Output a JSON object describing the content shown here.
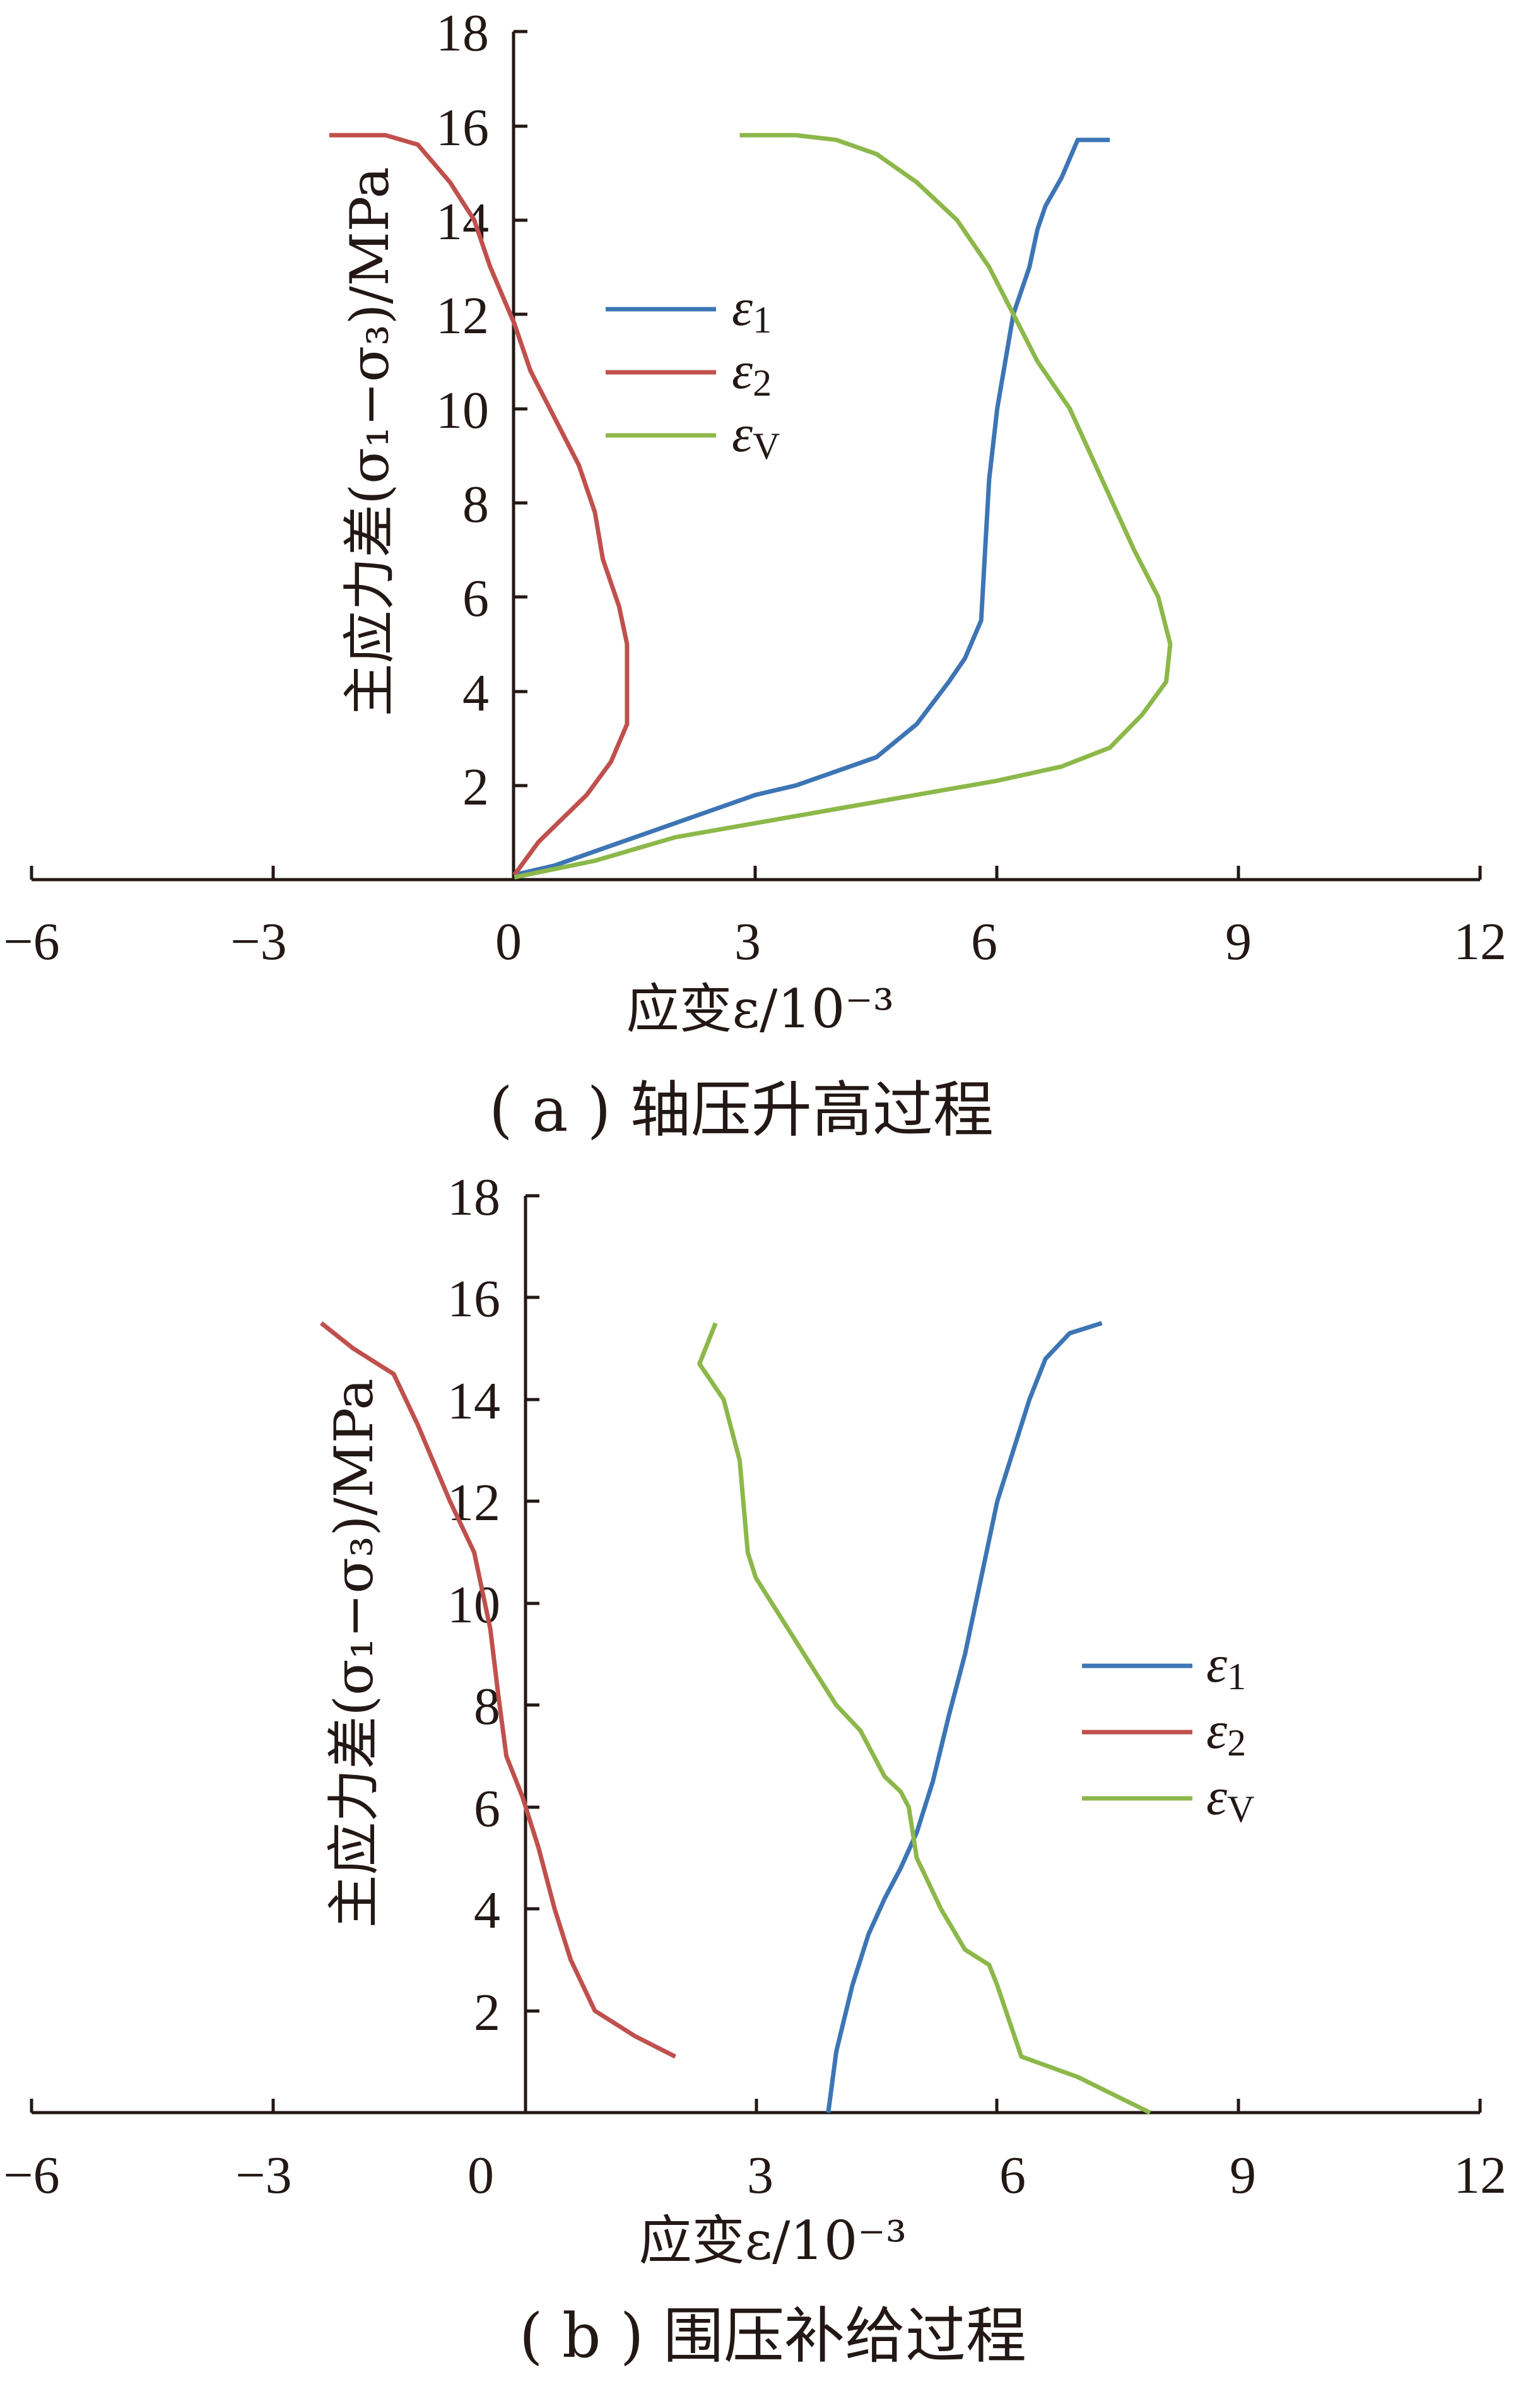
{
  "colors": {
    "eps1": "#3d75b5",
    "eps2": "#c0504d",
    "epsV": "#8cb84a",
    "axis": "#231815"
  },
  "chart_data": [
    {
      "type": "line",
      "caption": "( a ) 轴压升高过程",
      "xlabel": "应变ε/10⁻³",
      "ylabel": "主应力差(σ₁−σ₃)/MPa",
      "xlim": [
        -6,
        12
      ],
      "ylim": [
        0,
        18
      ],
      "xticks": [
        "−6",
        "−3",
        "0",
        "3",
        "6",
        "9",
        "12"
      ],
      "yticks": [
        "2",
        "4",
        "6",
        "8",
        "10",
        "12",
        "14",
        "16",
        "18"
      ],
      "legend": {
        "position": "upper-middle",
        "labels": [
          "ε",
          "ε",
          "ε"
        ],
        "subscripts": [
          "1",
          "2",
          "V"
        ]
      },
      "series": [
        {
          "name": "ε1",
          "x": [
            0.0,
            0.5,
            1.0,
            1.5,
            2.0,
            2.5,
            3.0,
            3.5,
            4.0,
            4.5,
            5.0,
            5.4,
            5.6,
            5.8,
            5.85,
            5.9,
            6.0,
            6.2,
            6.4,
            6.5,
            6.6,
            6.8,
            7.0,
            7.4
          ],
          "y": [
            0.1,
            0.3,
            0.6,
            0.9,
            1.2,
            1.5,
            1.8,
            2.0,
            2.3,
            2.6,
            3.3,
            4.2,
            4.7,
            5.5,
            7.0,
            8.5,
            10.0,
            12.0,
            13.0,
            13.8,
            14.3,
            14.9,
            15.7,
            15.7
          ]
        },
        {
          "name": "ε2",
          "x": [
            0.0,
            0.3,
            0.6,
            0.9,
            1.2,
            1.4,
            1.4,
            1.3,
            1.1,
            1.0,
            0.8,
            0.5,
            0.2,
            0.0,
            -0.3,
            -0.5,
            -0.8,
            -1.2,
            -1.6,
            -2.3
          ],
          "y": [
            0.1,
            0.8,
            1.3,
            1.8,
            2.5,
            3.3,
            5.0,
            5.8,
            6.8,
            7.8,
            8.8,
            9.8,
            10.8,
            11.8,
            13.0,
            14.0,
            14.8,
            15.6,
            15.8,
            15.8
          ]
        },
        {
          "name": "εV",
          "x": [
            0.0,
            1.0,
            2.0,
            3.0,
            4.0,
            5.0,
            6.0,
            6.8,
            7.4,
            7.8,
            8.1,
            8.15,
            8.0,
            7.7,
            7.3,
            6.9,
            6.5,
            6.2,
            5.9,
            5.5,
            5.0,
            4.5,
            4.0,
            3.5,
            2.8
          ],
          "y": [
            0.05,
            0.4,
            0.9,
            1.2,
            1.5,
            1.8,
            2.1,
            2.4,
            2.8,
            3.5,
            4.2,
            5.0,
            6.0,
            7.0,
            8.5,
            10.0,
            11.0,
            12.0,
            13.0,
            14.0,
            14.8,
            15.4,
            15.7,
            15.8,
            15.8
          ]
        }
      ]
    },
    {
      "type": "line",
      "caption": "( b ) 围压补给过程",
      "xlabel": "应变ε/10⁻³",
      "ylabel": "主应力差(σ₁−σ₃)/MPa",
      "xlim": [
        -6,
        12
      ],
      "ylim": [
        0,
        18
      ],
      "xticks": [
        "−6",
        "−3",
        "0",
        "3",
        "6",
        "9",
        "12"
      ],
      "yticks": [
        "2",
        "4",
        "6",
        "8",
        "10",
        "12",
        "14",
        "16",
        "18"
      ],
      "legend": {
        "position": "right-middle",
        "labels": [
          "ε",
          "ε",
          "ε"
        ],
        "subscripts": [
          "1",
          "2",
          "V"
        ]
      },
      "series": [
        {
          "name": "ε1",
          "x": [
            3.9,
            4.0,
            4.2,
            4.4,
            4.6,
            4.8,
            5.0,
            5.2,
            5.4,
            5.6,
            5.8,
            6.0,
            6.2,
            6.4,
            6.6,
            6.9,
            7.3
          ],
          "y": [
            0.0,
            1.2,
            2.5,
            3.5,
            4.2,
            4.8,
            5.5,
            6.5,
            7.8,
            9.0,
            10.5,
            12.0,
            13.0,
            14.0,
            14.8,
            15.3,
            15.5
          ]
        },
        {
          "name": "ε2",
          "x": [
            2.0,
            1.5,
            1.0,
            0.7,
            0.5,
            0.3,
            0.1,
            -0.1,
            -0.2,
            -0.3,
            -0.5,
            -0.8,
            -1.2,
            -1.5,
            -2.0,
            -2.4
          ],
          "y": [
            1.1,
            1.5,
            2.0,
            3.0,
            4.0,
            5.2,
            6.2,
            7.0,
            8.2,
            9.5,
            11.0,
            12.0,
            13.5,
            14.5,
            15.0,
            15.5
          ]
        },
        {
          "name": "εV",
          "x": [
            7.9,
            7.0,
            6.3,
            6.0,
            5.9,
            5.6,
            5.3,
            5.0,
            4.9,
            4.8,
            4.6,
            4.3,
            4.0,
            3.8,
            3.4,
            3.0,
            2.9,
            2.8,
            2.6,
            2.3,
            2.5
          ],
          "y": [
            0.0,
            0.7,
            1.1,
            2.5,
            2.9,
            3.2,
            4.0,
            5.0,
            6.0,
            6.3,
            6.6,
            7.5,
            8.0,
            8.5,
            9.5,
            10.5,
            11.0,
            12.8,
            14.0,
            14.7,
            15.5
          ]
        }
      ]
    }
  ]
}
